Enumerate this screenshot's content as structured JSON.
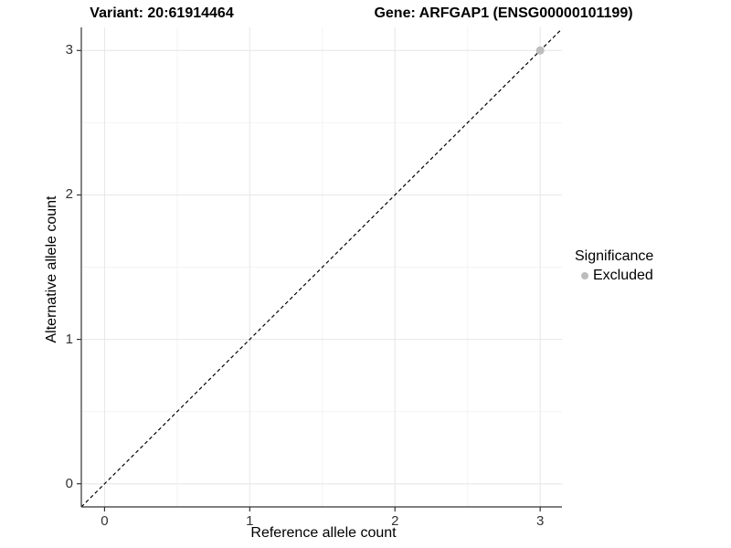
{
  "titles": {
    "left": "Variant: 20:61914464",
    "right": "Gene: ARFGAP1 (ENSG00000101199)"
  },
  "chart_data": {
    "type": "scatter",
    "xlabel": "Reference allele count",
    "ylabel": "Alternative allele count",
    "xlim": [
      -0.16,
      3.15
    ],
    "ylim": [
      -0.16,
      3.16
    ],
    "x_ticks": [
      0,
      1,
      2,
      3
    ],
    "y_ticks": [
      0,
      1,
      2,
      3
    ],
    "x_minor_ticks": [
      0.5,
      1.5,
      2.5
    ],
    "y_minor_ticks": [
      0.5,
      1.5,
      2.5
    ],
    "grid": true,
    "reference_line": {
      "type": "identity y=x",
      "style": "dashed",
      "color": "#000000"
    },
    "series": [
      {
        "name": "Excluded",
        "color": "#bdbdbd",
        "points": [
          {
            "x": 3,
            "y": 3
          }
        ]
      }
    ],
    "legend": {
      "title": "Significance",
      "position": "right",
      "items": [
        {
          "label": "Excluded",
          "color": "#bdbdbd"
        }
      ]
    }
  },
  "colors": {
    "background": "#ffffff",
    "grid_major": "#e6e6e6",
    "grid_minor": "#f3f3f3",
    "axis": "#333333",
    "tick_text": "#333333",
    "title_text": "#000000"
  }
}
